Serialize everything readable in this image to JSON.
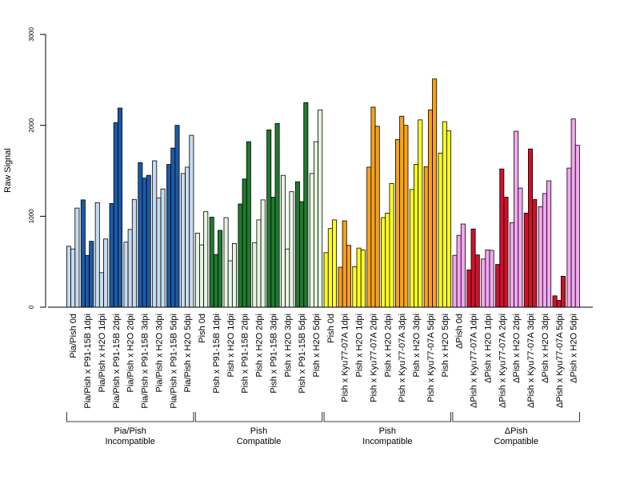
{
  "chart_data": {
    "type": "bar",
    "ylabel": "Raw Signal",
    "xlabel": "",
    "ylim": [
      0,
      3000
    ],
    "yticks": [
      0,
      1000,
      2000,
      3000
    ],
    "grid": false,
    "legend": "none",
    "categories": [
      "Pia/Pish 0d",
      "Pia/Pish x P91-15B 1dpi",
      "Pia/Pish x H2O 1dpi",
      "Pia/Pish x P91-15B 2dpi",
      "Pia/Pish x H2O 2dpi",
      "Pia/Pish x P91-15B 3dpi",
      "Pia/Pish x H2O 3dpi",
      "Pia/Pish x P91-15B 5dpi",
      "Pia/Pish x H2O 5dpi",
      "Pish 0d",
      "Pish x P91-15B 1dpi",
      "Pish x H2O 1dpi",
      "Pish x P91-15B 2dpi",
      "Pish x H2O 2dpi",
      "Pish x P91-15B 3dpi",
      "Pish x H2O 3dpi",
      "Pish x P91-15B 5dpi",
      "Pish x H2O 5dpi",
      "Pish 0d",
      "Pish x Kyu77-07A 1dpi",
      "Pish x H2O 1dpi",
      "Pish x Kyu77-07A 2dpi",
      "Pish x H2O 2dpi",
      "Pish x Kyu77-07A 3dpi",
      "Pish x H2O 3dpi",
      "Pish x Kyu77-07A 5dpi",
      "Pish x H2O 5dpi",
      "ΔPish 0d",
      "ΔPish x Kyu77-07A 1dpi",
      "ΔPish x H2O 1dpi",
      "ΔPish x Kyu77-07A 2dpi",
      "ΔPish x H2O 2dpi",
      "ΔPish x Kyu77-07A 3dpi",
      "ΔPish x H2O 3dpi",
      "ΔPish x Kyu77-07A 5dpi",
      "ΔPish x H2O 5dpi"
    ],
    "values": [
      [
        670,
        640,
        1090
      ],
      [
        1180,
        570,
        725
      ],
      [
        1150,
        380,
        750
      ],
      [
        1140,
        2030,
        2190
      ],
      [
        715,
        855,
        1185
      ],
      [
        1590,
        1420,
        1450
      ],
      [
        1610,
        1200,
        1300
      ],
      [
        1570,
        1750,
        2000
      ],
      [
        1470,
        1540,
        1890
      ],
      [
        815,
        685,
        1050
      ],
      [
        990,
        580,
        845
      ],
      [
        985,
        510,
        700
      ],
      [
        1135,
        1410,
        1820
      ],
      [
        710,
        960,
        1180
      ],
      [
        1950,
        1210,
        2020
      ],
      [
        1450,
        640,
        1270
      ],
      [
        1380,
        1160,
        2250
      ],
      [
        1470,
        1820,
        2170
      ],
      [
        600,
        865,
        960
      ],
      [
        440,
        950,
        680
      ],
      [
        445,
        650,
        630
      ],
      [
        1540,
        2200,
        1990
      ],
      [
        985,
        1035,
        1360
      ],
      [
        1845,
        2100,
        2000
      ],
      [
        1295,
        1570,
        2060
      ],
      [
        1545,
        2170,
        2510
      ],
      [
        1695,
        2040,
        1940
      ],
      [
        570,
        790,
        915
      ],
      [
        410,
        860,
        575
      ],
      [
        530,
        630,
        625
      ],
      [
        470,
        1520,
        1210
      ],
      [
        930,
        1935,
        1310
      ],
      [
        1035,
        1740,
        1185
      ],
      [
        1105,
        1250,
        1390
      ],
      [
        125,
        75,
        340
      ],
      [
        1530,
        2070,
        1780
      ]
    ],
    "bar_colors": [
      "#c6dbef",
      "#1c5aa8",
      "#c6dbef",
      "#1c5aa8",
      "#c6dbef",
      "#1c5aa8",
      "#c6dbef",
      "#1c5aa8",
      "#c6dbef",
      "#e5f5e0",
      "#1f7a2e",
      "#e5f5e0",
      "#1f7a2e",
      "#e5f5e0",
      "#1f7a2e",
      "#e5f5e0",
      "#1f7a2e",
      "#e5f5e0",
      "#ffff22",
      "#f7a21b",
      "#ffff22",
      "#f7a21b",
      "#ffff22",
      "#f7a21b",
      "#ffff22",
      "#f7a21b",
      "#ffff22",
      "#f4a6f0",
      "#d0112b",
      "#f4a6f0",
      "#d0112b",
      "#f4a6f0",
      "#d0112b",
      "#f4a6f0",
      "#d0112b",
      "#f4a6f0"
    ],
    "groups": [
      {
        "line1": "Pia/Pish",
        "line2": "Incompatible",
        "start": 0,
        "end": 8
      },
      {
        "line1": "Pish",
        "line2": "Compatible",
        "start": 9,
        "end": 17
      },
      {
        "line1": "Pish",
        "line2": "Incompatible",
        "start": 18,
        "end": 26
      },
      {
        "line1": "ΔPish",
        "line2": "Compatible",
        "start": 27,
        "end": 35
      }
    ]
  }
}
